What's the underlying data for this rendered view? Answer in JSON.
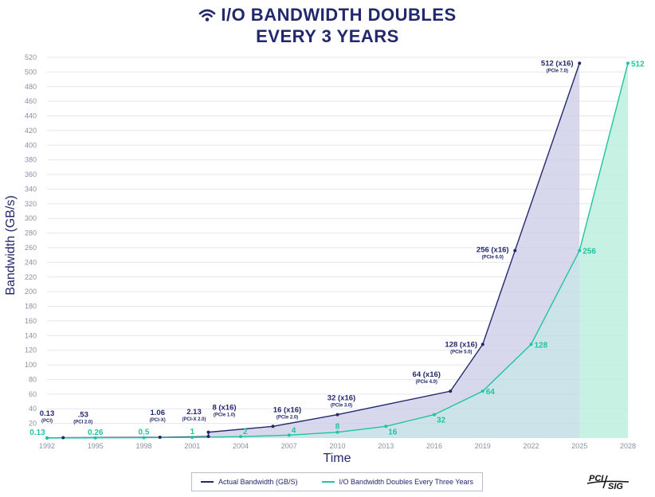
{
  "title_line1": "I/O BANDWIDTH DOUBLES",
  "title_line2": "EVERY 3 YEARS",
  "logo_text_top": "PCI",
  "logo_text_bottom": "SIG",
  "colors": {
    "navy": "#23286d",
    "teal": "#1fc4a0",
    "purple_fill": "#c9cbe6",
    "teal_fill": "#bdeedd"
  },
  "chart_data": {
    "type": "line",
    "xlabel": "Time",
    "ylabel": "Bandwidth (GB/s)",
    "xlim": [
      1992,
      2028
    ],
    "ylim": [
      0,
      520
    ],
    "x_ticks": [
      1992,
      1995,
      1998,
      2001,
      2004,
      2007,
      2010,
      2013,
      2016,
      2019,
      2022,
      2025,
      2028
    ],
    "y_ticks": [
      20,
      40,
      60,
      80,
      100,
      120,
      140,
      160,
      180,
      200,
      220,
      240,
      260,
      280,
      300,
      320,
      340,
      360,
      380,
      400,
      420,
      440,
      460,
      480,
      500,
      520
    ],
    "legend": [
      "Actual Bandwidth (GB/S)",
      "I/O Bandwidth Doubles Every Three Years"
    ],
    "legend_position": "bottom",
    "series": [
      {
        "name": "Actual Bandwidth (GB/S)",
        "color": "#23286d",
        "points": [
          {
            "x": 1992,
            "y": 0.13,
            "label": "0.13",
            "sub": "(PCI)"
          },
          {
            "x": 1993,
            "y": 0.53,
            "label": ".53",
            "sub": "(PCI 2.0)"
          },
          {
            "x": 1999,
            "y": 1.06,
            "label": "1.06",
            "sub": "(PCI-X)"
          },
          {
            "x": 2002,
            "y": 2.13,
            "label": "2.13",
            "sub": "(PCI-X 2.0)"
          },
          {
            "x": 2002,
            "y": 8,
            "label": "8 (x16)",
            "sub": "(PCIe 1.0)"
          },
          {
            "x": 2006,
            "y": 16,
            "label": "16 (x16)",
            "sub": "(PCIe 2.0)"
          },
          {
            "x": 2010,
            "y": 32,
            "label": "32 (x16)",
            "sub": "(PCIe 3.0)"
          },
          {
            "x": 2017,
            "y": 64,
            "label": "64 (x16)",
            "sub": "(PCIe 4.0)"
          },
          {
            "x": 2019,
            "y": 128,
            "label": "128 (x16)",
            "sub": "(PCIe 5.0)"
          },
          {
            "x": 2021,
            "y": 256,
            "label": "256 (x16)",
            "sub": "(PCIe 6.0)"
          },
          {
            "x": 2025,
            "y": 512,
            "label": "512 (x16)",
            "sub": "(PCIe 7.0)"
          }
        ]
      },
      {
        "name": "I/O Bandwidth Doubles Every Three Years",
        "color": "#1fc4a0",
        "points": [
          {
            "x": 1992,
            "y": 0.13,
            "label": "0.13"
          },
          {
            "x": 1995,
            "y": 0.26,
            "label": "0.26"
          },
          {
            "x": 1998,
            "y": 0.5,
            "label": "0.5"
          },
          {
            "x": 2001,
            "y": 1,
            "label": "1"
          },
          {
            "x": 2004,
            "y": 2,
            "label": "2"
          },
          {
            "x": 2007,
            "y": 4,
            "label": "4"
          },
          {
            "x": 2010,
            "y": 8,
            "label": "8"
          },
          {
            "x": 2013,
            "y": 16,
            "label": "16"
          },
          {
            "x": 2016,
            "y": 32,
            "label": "32"
          },
          {
            "x": 2019,
            "y": 64,
            "label": "64"
          },
          {
            "x": 2022,
            "y": 128,
            "label": "128"
          },
          {
            "x": 2025,
            "y": 256,
            "label": "256"
          },
          {
            "x": 2028,
            "y": 512,
            "label": "512"
          }
        ]
      }
    ]
  }
}
